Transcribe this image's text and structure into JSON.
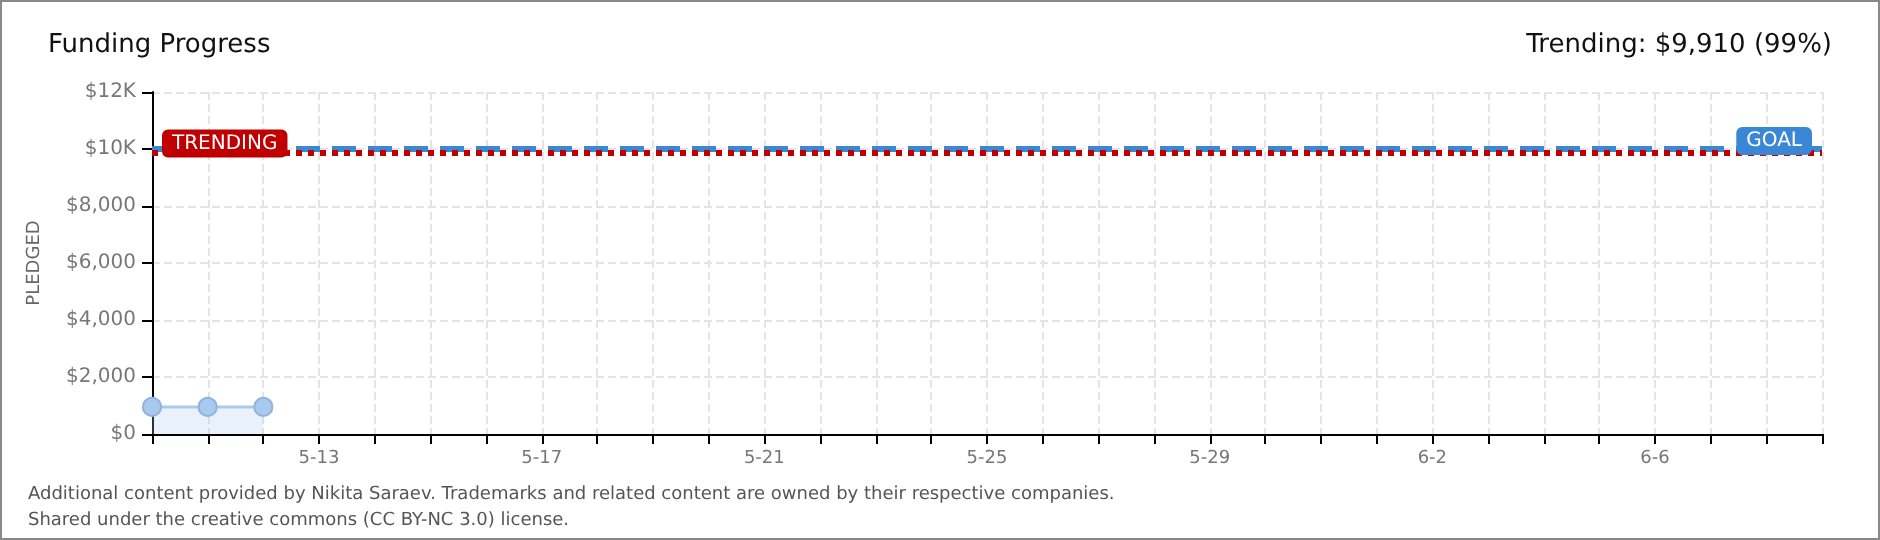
{
  "chart_data": {
    "type": "area",
    "title": "Funding Progress",
    "subtitle": "Trending: $9,910 (99%)",
    "ylabel": "PLEDGED",
    "x": [
      "--05-10",
      "--05-11",
      "--05-12"
    ],
    "series": [
      {
        "color": "#a9c9ee",
        "values": [
          950,
          950,
          950
        ]
      }
    ],
    "marker": "circle",
    "xlim": [
      "--05-10",
      "--06-09"
    ],
    "xticks": [
      {
        "value": "--05-10",
        "label": null
      },
      {
        "value": "--05-11",
        "label": null
      },
      {
        "value": "--05-12",
        "label": null
      },
      {
        "value": "--05-13",
        "label": "5-13"
      },
      {
        "value": "--05-14",
        "label": null
      },
      {
        "value": "--05-15",
        "label": null
      },
      {
        "value": "--05-16",
        "label": null
      },
      {
        "value": "--05-17",
        "label": "5-17"
      },
      {
        "value": "--05-18",
        "label": null
      },
      {
        "value": "--05-19",
        "label": null
      },
      {
        "value": "--05-20",
        "label": null
      },
      {
        "value": "--05-21",
        "label": "5-21"
      },
      {
        "value": "--05-22",
        "label": null
      },
      {
        "value": "--05-23",
        "label": null
      },
      {
        "value": "--05-24",
        "label": null
      },
      {
        "value": "--05-25",
        "label": "5-25"
      },
      {
        "value": "--05-26",
        "label": null
      },
      {
        "value": "--05-27",
        "label": null
      },
      {
        "value": "--05-28",
        "label": null
      },
      {
        "value": "--05-29",
        "label": "5-29"
      },
      {
        "value": "--05-30",
        "label": null
      },
      {
        "value": "--05-31",
        "label": null
      },
      {
        "value": "--06-01",
        "label": null
      },
      {
        "value": "--06-02",
        "label": "6-2"
      },
      {
        "value": "--06-03",
        "label": null
      },
      {
        "value": "--06-04",
        "label": null
      },
      {
        "value": "--06-05",
        "label": null
      },
      {
        "value": "--06-06",
        "label": "6-6"
      },
      {
        "value": "--06-07",
        "label": null
      },
      {
        "value": "--06-08",
        "label": null
      },
      {
        "value": "--06-09",
        "label": null
      }
    ],
    "ylim": [
      0,
      12000
    ],
    "yticks": [
      {
        "value": 0,
        "label": "$0"
      },
      {
        "value": 2000,
        "label": "$2,000"
      },
      {
        "value": 4000,
        "label": "$4,000"
      },
      {
        "value": 6000,
        "label": "$6,000"
      },
      {
        "value": 8000,
        "label": "$8,000"
      },
      {
        "value": 10000,
        "label": "$10K"
      },
      {
        "value": 12000,
        "label": "$12K"
      }
    ],
    "grid": true,
    "ref_lines": [
      {
        "axis": "y",
        "value": 10000,
        "label": "GOAL",
        "color": "#3a87d6",
        "line_style": "dashed"
      },
      {
        "axis": "y",
        "value": 9910,
        "label": "TRENDING",
        "color": "#c00000",
        "line_style": "dotted"
      }
    ],
    "annotations": [
      "Additional content provided by Nikita Saraev. Trademarks and related content are owned by their respective companies.",
      "Shared under the creative commons (CC BY-NC 3.0) license."
    ]
  }
}
